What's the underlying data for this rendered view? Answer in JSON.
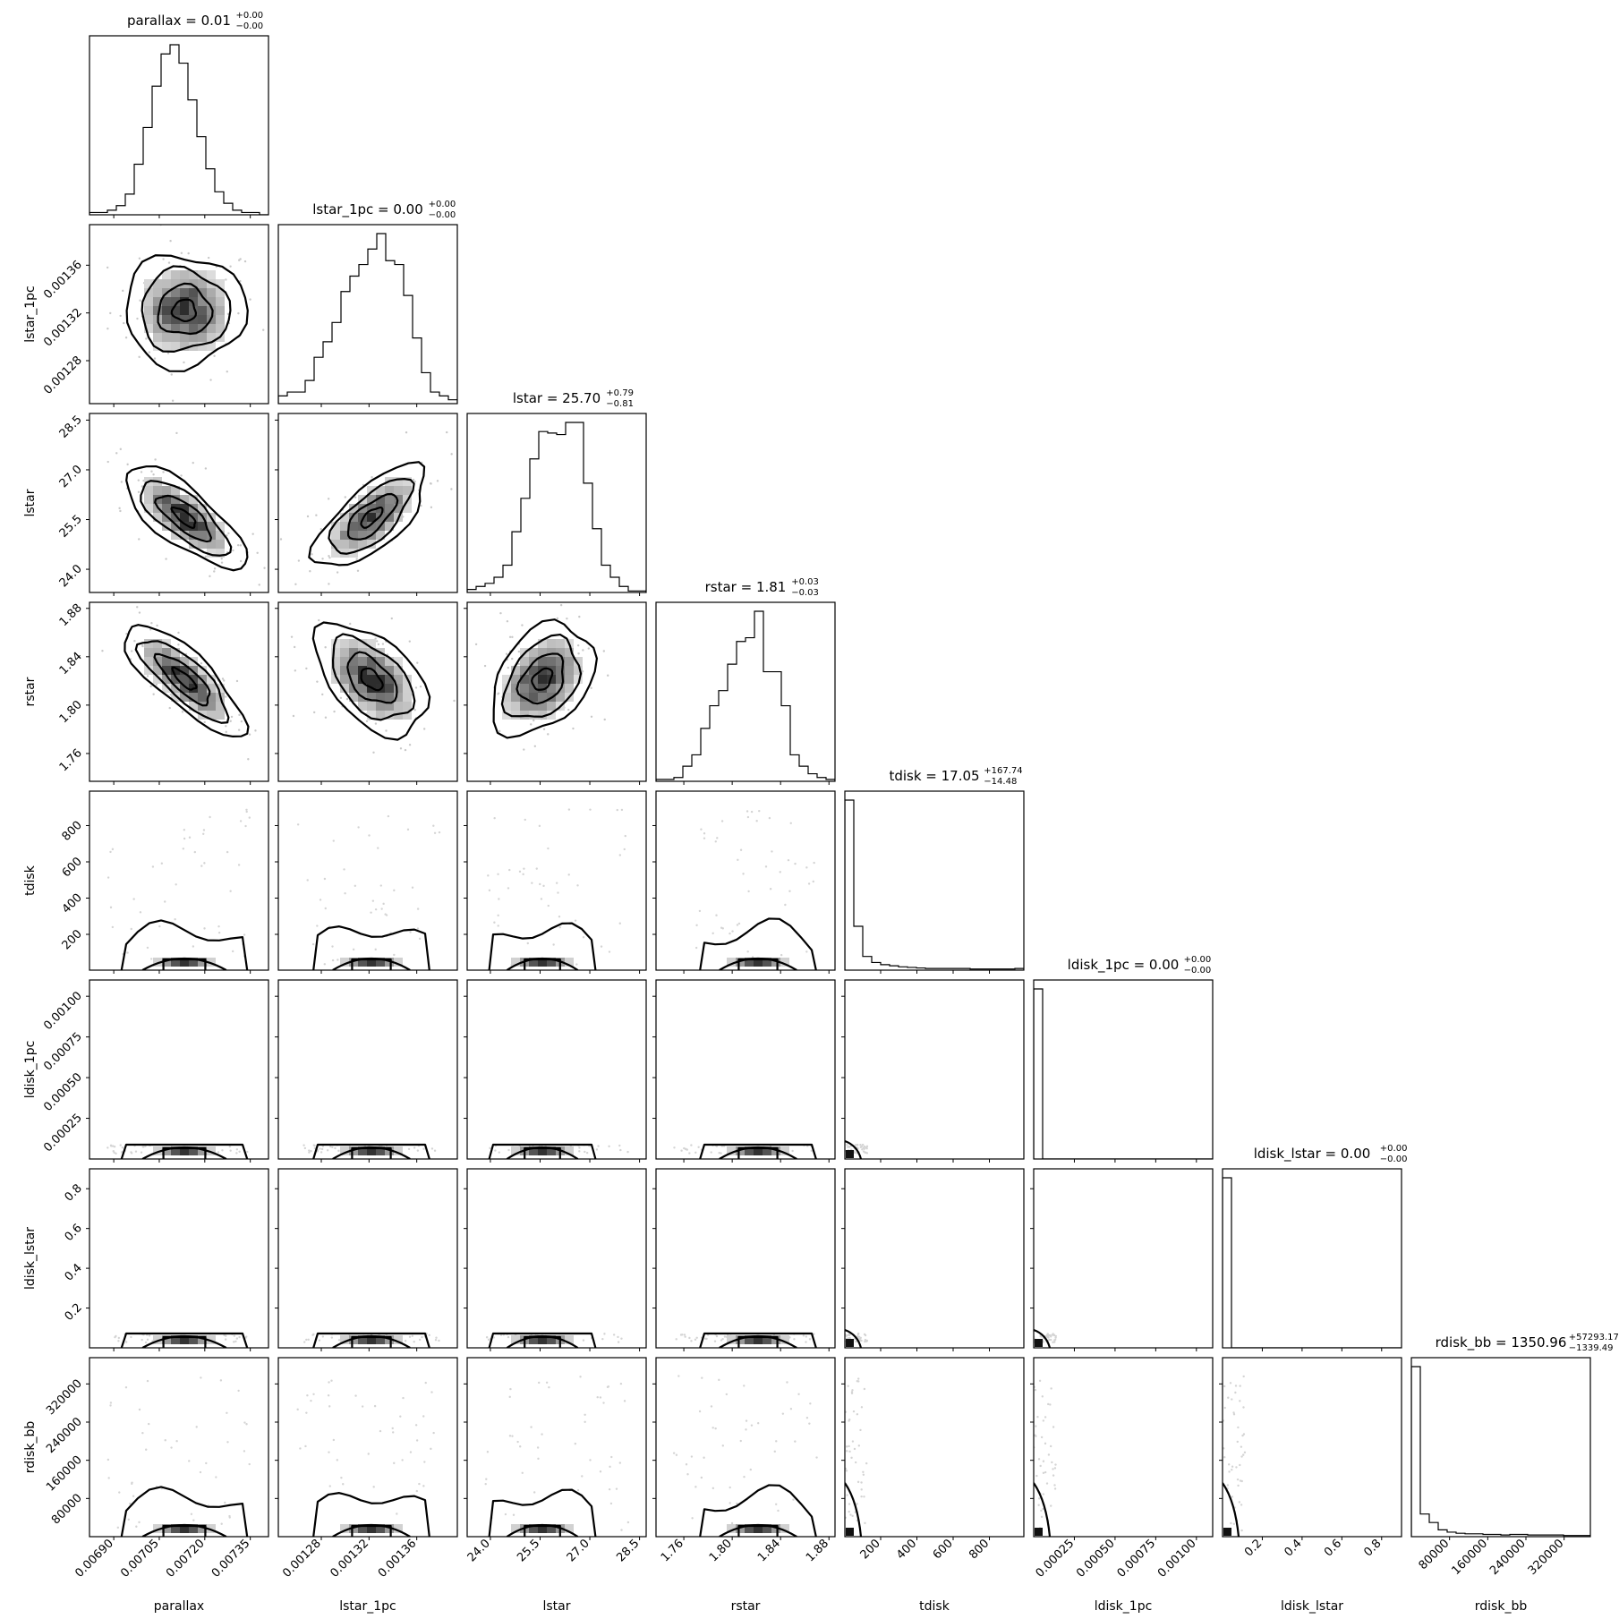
{
  "chart_data": {
    "type": "corner",
    "params": [
      {
        "name": "parallax",
        "title_main": "parallax = 0.01",
        "sup": "+0.00",
        "sub": "−0.00",
        "label": "parallax",
        "range": [
          0.00682,
          0.00741
        ],
        "ticks": [
          0.0069,
          0.00705,
          0.0072,
          0.00735
        ],
        "tick_labels": [
          "0.00690",
          "0.00705",
          "0.00720",
          "0.00735"
        ],
        "hist": [
          1,
          1,
          2,
          4,
          9,
          22,
          38,
          56,
          70,
          74,
          66,
          50,
          34,
          20,
          10,
          5,
          2,
          1,
          1,
          0
        ]
      },
      {
        "name": "lstar_1pc",
        "title_main": "lstar_1pc = 0.00",
        "sup": "+0.00",
        "sub": "−0.00",
        "label": "lstar_1pc",
        "range": [
          0.001244,
          0.001394
        ],
        "ticks": [
          0.00128,
          0.00132,
          0.00136
        ],
        "tick_labels": [
          "0.00128",
          "0.00132",
          "0.00136"
        ],
        "hist": [
          4,
          6,
          6,
          12,
          24,
          32,
          42,
          58,
          66,
          72,
          80,
          88,
          74,
          72,
          56,
          34,
          16,
          6,
          4,
          2
        ]
      },
      {
        "name": "lstar",
        "title_main": "lstar = 25.70",
        "sup": "+0.79",
        "sub": "−0.81",
        "label": "lstar",
        "range": [
          23.3,
          28.7
        ],
        "ticks": [
          24.0,
          25.5,
          27.0,
          28.5
        ],
        "tick_labels": [
          "24.0",
          "25.5",
          "27.0",
          "28.5"
        ],
        "hist": [
          2,
          4,
          6,
          10,
          18,
          40,
          62,
          88,
          106,
          105,
          104,
          112,
          112,
          72,
          42,
          18,
          10,
          4,
          1,
          1
        ]
      },
      {
        "name": "rstar",
        "title_main": "rstar = 1.81",
        "sup": "+0.03",
        "sub": "−0.03",
        "label": "rstar",
        "range": [
          1.737,
          1.885
        ],
        "ticks": [
          1.76,
          1.8,
          1.84,
          1.88
        ],
        "tick_labels": [
          "1.76",
          "1.80",
          "1.84",
          "1.88"
        ],
        "hist": [
          1,
          1,
          2,
          8,
          14,
          28,
          40,
          48,
          62,
          74,
          76,
          90,
          58,
          58,
          40,
          14,
          8,
          4,
          2,
          1
        ]
      },
      {
        "name": "tdisk",
        "title_main": "tdisk = 17.05",
        "sup": "+167.74",
        "sub": "−14.48",
        "label": "tdisk",
        "range": [
          2.57,
          990
        ],
        "ticks": [
          200,
          400,
          600,
          800
        ],
        "tick_labels": [
          "200",
          "400",
          "600",
          "800"
        ],
        "hist": [
          310,
          80,
          25,
          14,
          10,
          8,
          6,
          5,
          4,
          3,
          3,
          3,
          3,
          3,
          2,
          2,
          2,
          2,
          2,
          3
        ]
      },
      {
        "name": "ldisk_1pc",
        "title_main": "ldisk_1pc = 0.00",
        "sup": "+0.00",
        "sub": "−0.00",
        "label": "ldisk_1pc",
        "range": [
          0,
          0.0011
        ],
        "ticks": [
          0.00025,
          0.0005,
          0.00075,
          0.001
        ],
        "tick_labels": [
          "0.00025",
          "0.00050",
          "0.00075",
          "0.00100"
        ],
        "hist": [
          1000,
          0,
          0,
          0,
          0,
          0,
          0,
          0,
          0,
          0,
          0,
          0,
          0,
          0,
          0,
          0,
          0,
          0,
          0,
          0
        ]
      },
      {
        "name": "ldisk_lstar",
        "title_main": "ldisk_lstar = 0.00",
        "sup": "+0.00",
        "sub": "−0.00",
        "label": "ldisk_lstar",
        "range": [
          0,
          0.9
        ],
        "ticks": [
          0.2,
          0.4,
          0.6,
          0.8
        ],
        "tick_labels": [
          "0.2",
          "0.4",
          "0.6",
          "0.8"
        ],
        "hist": [
          1000,
          0,
          0,
          0,
          0,
          0,
          0,
          0,
          0,
          0,
          0,
          0,
          0,
          0,
          0,
          0,
          0,
          0,
          0,
          0
        ]
      },
      {
        "name": "rdisk_bb",
        "title_main": "rdisk_bb = 1350.96",
        "sup": "+57293.17",
        "sub": "−1339.49",
        "label": "rdisk_bb",
        "range": [
          0,
          375000
        ],
        "ticks": [
          80000,
          160000,
          240000,
          320000
        ],
        "tick_labels": [
          "80000",
          "160000",
          "240000",
          "320000"
        ],
        "hist": [
          300,
          40,
          25,
          12,
          8,
          6,
          5,
          5,
          4,
          4,
          3,
          4,
          4,
          3,
          3,
          3,
          3,
          2,
          2,
          2
        ]
      }
    ]
  }
}
